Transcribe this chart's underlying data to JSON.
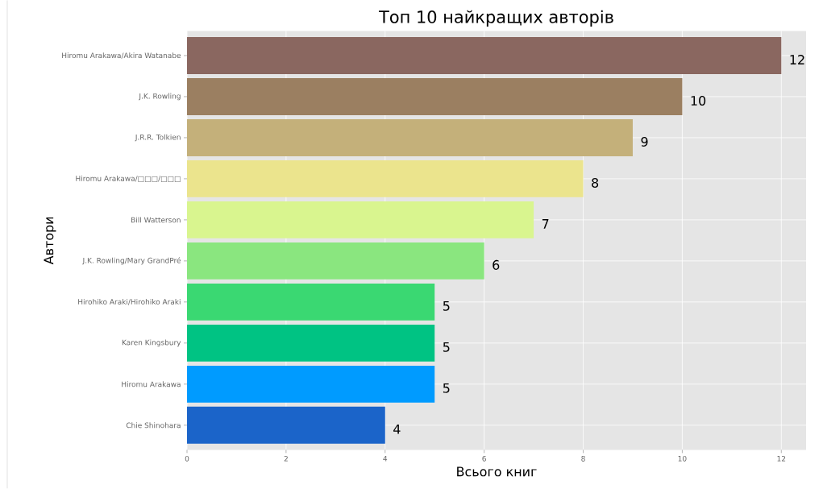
{
  "chart_data": {
    "type": "bar",
    "orientation": "horizontal",
    "title": "Топ 10 найкращих авторів",
    "xlabel": "Всього книг",
    "ylabel": "Автори",
    "categories": [
      "Hiromu Arakawa/Akira Watanabe",
      "J.K. Rowling",
      "J.R.R. Tolkien",
      "Hiromu Arakawa/□□□/□□□",
      "Bill Watterson",
      "J.K. Rowling/Mary GrandPré",
      "Hirohiko Araki/Hirohiko Araki",
      "Karen Kingsbury",
      "Hiromu Arakawa",
      "Chie Shinohara"
    ],
    "values": [
      12,
      10,
      9,
      8,
      7,
      6,
      5,
      5,
      5,
      4
    ],
    "colors": [
      "#8a6760",
      "#9b7f61",
      "#c4b07a",
      "#ebe48d",
      "#d9f58f",
      "#8ae67f",
      "#3ad872",
      "#00c383",
      "#009bff",
      "#1b64c9"
    ],
    "xlim": [
      0,
      12.5
    ],
    "xticks": [
      0,
      2,
      4,
      6,
      8,
      10,
      12
    ],
    "grid": true,
    "data_labels": true
  }
}
